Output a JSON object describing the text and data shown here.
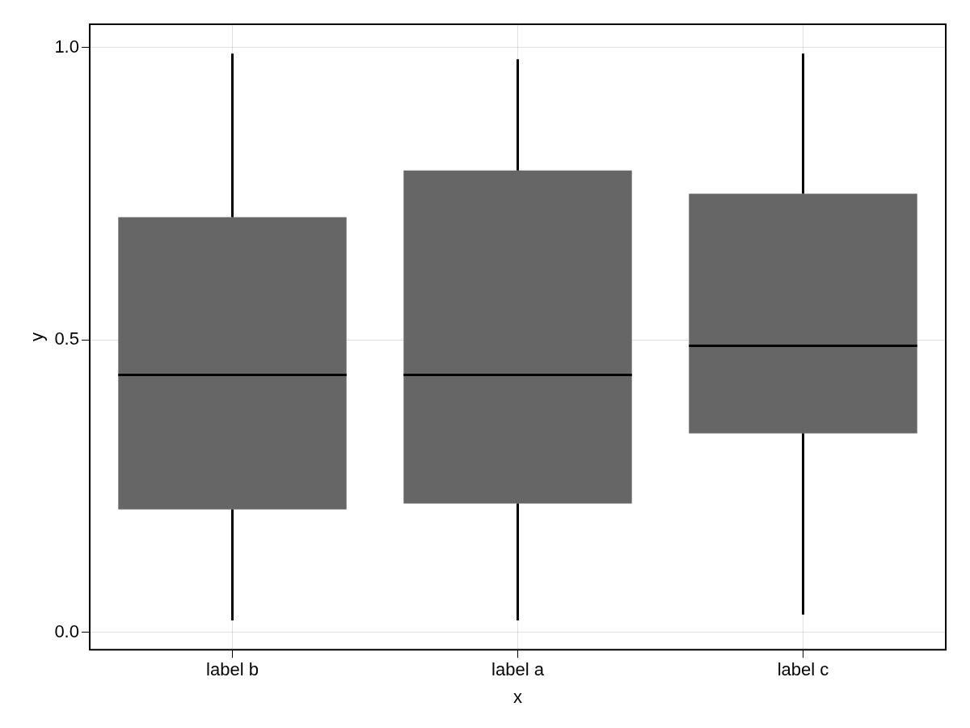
{
  "chart_data": {
    "type": "box",
    "xlabel": "x",
    "ylabel": "y",
    "categories": [
      "label b",
      "label a",
      "label c"
    ],
    "series": [
      {
        "color": "#666666",
        "boxes": [
          {
            "low": 0.02,
            "q1": 0.21,
            "median": 0.44,
            "q3": 0.71,
            "high": 0.99
          },
          {
            "low": 0.02,
            "q1": 0.22,
            "median": 0.44,
            "q3": 0.79,
            "high": 0.98
          },
          {
            "low": 0.03,
            "q1": 0.34,
            "median": 0.49,
            "q3": 0.75,
            "high": 0.99
          }
        ]
      }
    ],
    "ylim": [
      -0.03,
      1.04
    ],
    "yticks": [
      {
        "value": 0,
        "label": "0.0"
      },
      0.5,
      {
        "value": 1,
        "label": "1.0"
      }
    ],
    "grid": true
  }
}
